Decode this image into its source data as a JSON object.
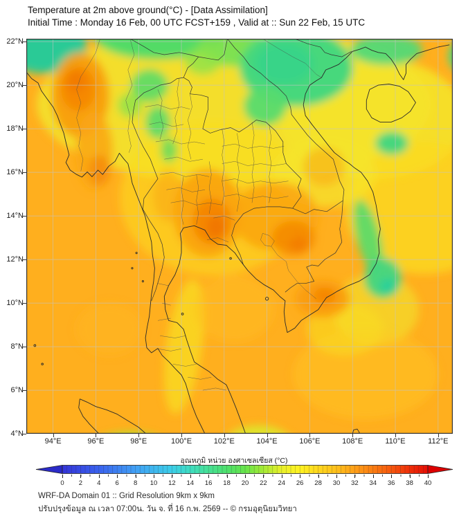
{
  "title": {
    "line1": "Temperature at 2m above ground(°C) - [Data Assimilation]",
    "line2": "Initial Time : Monday 16 Feb, 00 UTC FCST+159 , Valid at :: Sun 22 Feb, 15 UTC"
  },
  "map": {
    "lat_ticks": [
      "22°N",
      "20°N",
      "18°N",
      "16°N",
      "14°N",
      "12°N",
      "10°N",
      "8°N",
      "6°N",
      "4°N"
    ],
    "lon_ticks": [
      "94°E",
      "96°E",
      "98°E",
      "100°E",
      "102°E",
      "104°E",
      "106°E",
      "108°E",
      "110°E",
      "112°E"
    ]
  },
  "colorbar": {
    "label": "อุณหภูมิ หน่วย องศาเซลเซียส (°C)",
    "ticks": [
      "0",
      "2",
      "4",
      "6",
      "8",
      "10",
      "12",
      "14",
      "16",
      "18",
      "20",
      "22",
      "24",
      "26",
      "28",
      "30",
      "32",
      "34",
      "36",
      "38",
      "40"
    ],
    "range_min": 0,
    "range_max": 40,
    "arrow_left_color": "#2B2BC8",
    "arrow_right_color": "#DC0000",
    "stops": [
      {
        "t": 0,
        "c": "#3434D8"
      },
      {
        "t": 4,
        "c": "#3A62EE"
      },
      {
        "t": 8,
        "c": "#41A0F5"
      },
      {
        "t": 12,
        "c": "#3CCEE8"
      },
      {
        "t": 14,
        "c": "#3EDCC0"
      },
      {
        "t": 16,
        "c": "#46E095"
      },
      {
        "t": 18,
        "c": "#4EE06C"
      },
      {
        "t": 20,
        "c": "#67E44B"
      },
      {
        "t": 22,
        "c": "#A5EA35"
      },
      {
        "t": 24,
        "c": "#E9F02B"
      },
      {
        "t": 26,
        "c": "#FFF222"
      },
      {
        "t": 28,
        "c": "#FFD71E"
      },
      {
        "t": 30,
        "c": "#FFC01C"
      },
      {
        "t": 32,
        "c": "#FF9F18"
      },
      {
        "t": 34,
        "c": "#FB7D12"
      },
      {
        "t": 36,
        "c": "#F6570E"
      },
      {
        "t": 38,
        "c": "#EE2F09"
      },
      {
        "t": 40,
        "c": "#E50E05"
      }
    ]
  },
  "footer": {
    "line1": "WRF-DA Domain 01 :: Grid Resolution 9km x 9km",
    "line2": "ปรับปรุงข้อมูล ณ เวลา 07:00น. วัน จ. ที่ 16 ก.พ. 2569 -- © กรมอุตุนิยมวิทยา"
  }
}
